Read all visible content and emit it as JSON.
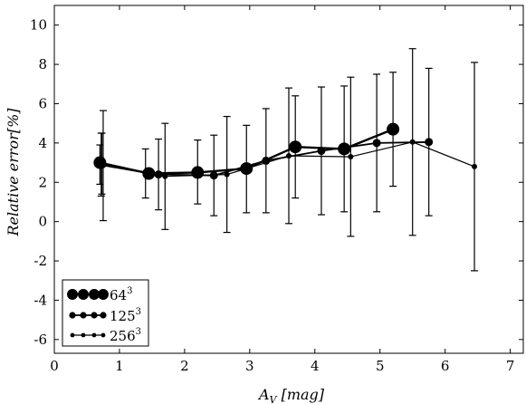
{
  "chart_data": {
    "type": "line",
    "title": "",
    "xlabel": "A_V [mag]",
    "ylabel": "Relative error[%]",
    "xlim": [
      0,
      7.2
    ],
    "ylim": [
      -6.7,
      11
    ],
    "xticks": [
      0,
      1,
      2,
      3,
      4,
      5,
      6,
      7
    ],
    "yticks": [
      -6,
      -4,
      -2,
      0,
      2,
      4,
      6,
      8,
      10
    ],
    "grid": false,
    "legend": {
      "position": "bottom-left",
      "entries": [
        {
          "base": "64",
          "sup": "3"
        },
        {
          "base": "125",
          "sup": "3"
        },
        {
          "base": "256",
          "sup": "3"
        }
      ]
    },
    "series": [
      {
        "name": "64^3",
        "marker_radius": 7,
        "line_width": 2.4,
        "x": [
          0.7,
          1.45,
          2.2,
          2.95,
          3.7,
          4.45,
          5.2
        ],
        "y": [
          3.0,
          2.45,
          2.5,
          2.7,
          3.8,
          3.7,
          4.7
        ],
        "err": [
          0.0,
          0.0,
          0.0,
          0.0,
          2.6,
          3.2,
          2.9
        ]
      },
      {
        "name": "125^3",
        "marker_radius": 4.5,
        "line_width": 1.8,
        "x": [
          0.72,
          1.6,
          2.45,
          3.25,
          4.1,
          4.95,
          5.75
        ],
        "y": [
          2.9,
          2.4,
          2.35,
          3.1,
          3.6,
          4.0,
          4.05
        ],
        "err": [
          1.6,
          1.8,
          2.05,
          2.65,
          3.25,
          3.5,
          3.75
        ]
      },
      {
        "name": "256^3",
        "marker_radius": 3,
        "line_width": 1.2,
        "x": [
          0.75,
          1.7,
          2.65,
          3.6,
          4.55,
          5.5,
          6.45
        ],
        "y": [
          2.85,
          2.3,
          2.4,
          3.35,
          3.3,
          4.05,
          2.8
        ],
        "err": [
          2.8,
          2.7,
          2.95,
          3.45,
          4.05,
          4.75,
          5.3
        ]
      }
    ],
    "extra_error_bars": [
      {
        "x": 0.7,
        "lo": 1.9,
        "hi": 3.9
      },
      {
        "x": 0.73,
        "lo": 1.4,
        "hi": 4.5
      },
      {
        "x": 1.4,
        "lo": 1.2,
        "hi": 3.7
      },
      {
        "x": 2.2,
        "lo": 0.9,
        "hi": 4.15
      },
      {
        "x": 2.95,
        "lo": 0.45,
        "hi": 4.9
      }
    ]
  }
}
